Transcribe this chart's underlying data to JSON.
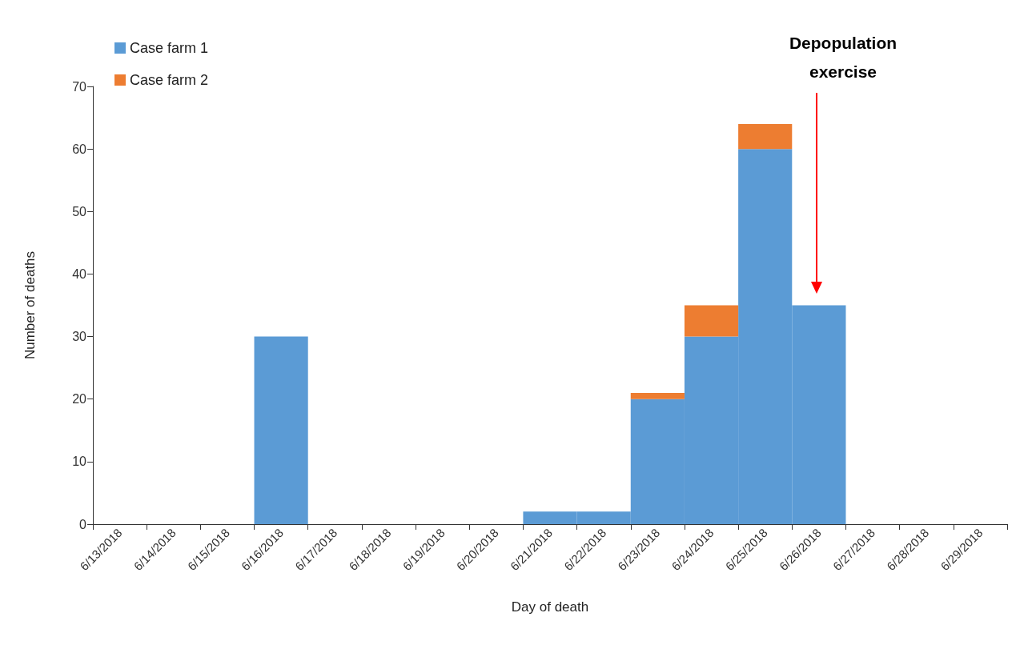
{
  "chart_data": {
    "type": "bar",
    "stacked": true,
    "xlabel": "Day of death",
    "ylabel": "Number of deaths",
    "categories": [
      "6/13/2018",
      "6/14/2018",
      "6/15/2018",
      "6/16/2018",
      "6/17/2018",
      "6/18/2018",
      "6/19/2018",
      "6/20/2018",
      "6/21/2018",
      "6/22/2018",
      "6/23/2018",
      "6/24/2018",
      "6/25/2018",
      "6/26/2018",
      "6/27/2018",
      "6/28/2018",
      "6/29/2018"
    ],
    "series": [
      {
        "name": "Case farm 1",
        "color": "#5b9bd5",
        "values": [
          0,
          0,
          0,
          30,
          0,
          0,
          0,
          0,
          2,
          2,
          20,
          30,
          60,
          35,
          0,
          0,
          0
        ]
      },
      {
        "name": "Case farm 2",
        "color": "#ed7d31",
        "values": [
          0,
          0,
          0,
          0,
          0,
          0,
          0,
          0,
          0,
          0,
          1,
          5,
          4,
          0,
          0,
          0,
          0
        ]
      }
    ],
    "ylim": [
      0,
      70
    ],
    "yticks": [
      0,
      10,
      20,
      30,
      40,
      50,
      60,
      70
    ],
    "grid": false,
    "legend": "top left",
    "annotations": [
      "Depopulation exercise"
    ]
  }
}
